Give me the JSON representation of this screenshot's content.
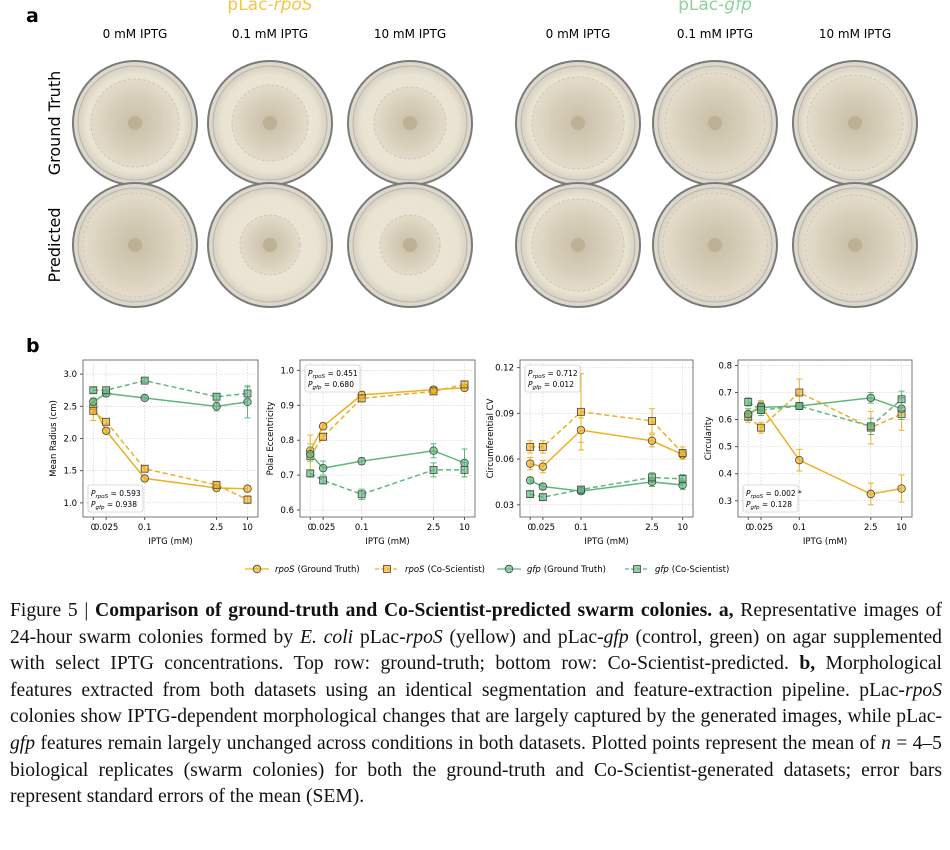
{
  "panel_a": {
    "letter": "a",
    "groups": [
      {
        "prefix": "pLac-",
        "gene": "rpoS",
        "color": "#f3c64a"
      },
      {
        "prefix": "pLac-",
        "gene": "gfp",
        "color": "#8fd0a0"
      }
    ],
    "conditions": [
      "0 mM IPTG",
      "0.1 mM IPTG",
      "10 mM IPTG",
      "0 mM IPTG",
      "0.1 mM IPTG",
      "10 mM IPTG"
    ],
    "rows": [
      "Ground Truth",
      "Predicted"
    ]
  },
  "panel_b": {
    "letter": "b"
  },
  "legend": [
    {
      "gene": "rpoS",
      "name": "(Ground Truth)",
      "color": "#eeb022",
      "dashed": false,
      "marker": "circle"
    },
    {
      "gene": "rpoS",
      "name": "(Co-Scientist)",
      "color": "#eeb022",
      "dashed": true,
      "marker": "square"
    },
    {
      "gene": "gfp",
      "name": "(Ground Truth)",
      "color": "#5fb77c",
      "dashed": false,
      "marker": "circle"
    },
    {
      "gene": "gfp",
      "name": "(Co-Scientist)",
      "color": "#5fb77c",
      "dashed": true,
      "marker": "square"
    }
  ],
  "chart_data": [
    {
      "type": "line",
      "ylabel": "Mean Radius (cm)",
      "xlabel": "IPTG (mM)",
      "xscale": "symlog",
      "grid": true,
      "x": [
        0,
        0.025,
        0.1,
        2.5,
        10
      ],
      "xlim": [
        -0.02,
        16
      ],
      "xticks": [
        0,
        0.025,
        0.1,
        2.5,
        10
      ],
      "ylim": [
        0.78,
        3.22
      ],
      "yticks": [
        {
          "value": 1,
          "label": "1.0"
        },
        1.5,
        {
          "value": 2,
          "label": "2.0"
        },
        2.5,
        {
          "value": 3,
          "label": "3.0"
        }
      ],
      "series": [
        {
          "values": [
            2.5,
            2.12,
            1.38,
            1.23,
            1.22
          ],
          "errors": [
            0.1,
            0.03,
            0.04,
            0.03,
            0.05
          ]
        },
        {
          "values": [
            2.43,
            2.26,
            1.53,
            1.28,
            1.05
          ],
          "errors": [
            0.15,
            0.05,
            0.05,
            0.04,
            0.06
          ]
        },
        {
          "values": [
            2.57,
            2.7,
            2.63,
            2.5,
            2.57
          ],
          "errors": [
            0.06,
            0.05,
            0.03,
            0.07,
            0.25
          ]
        },
        {
          "values": [
            2.75,
            2.75,
            2.9,
            2.65,
            2.7
          ],
          "errors": [
            0.04,
            0.05,
            0.03,
            0.05,
            0.1
          ]
        }
      ],
      "note_corner": "lower left",
      "annotations": [
        {
          "p": "P",
          "sub": "rpoS",
          "text": " = 0.593"
        },
        {
          "p": "P",
          "sub": "gfp",
          "text": " = 0.938"
        }
      ]
    },
    {
      "type": "line",
      "ylabel": "Polar Eccentricity",
      "xlabel": "IPTG (mM)",
      "xscale": "symlog",
      "grid": true,
      "x": [
        0,
        0.025,
        0.1,
        2.5,
        10
      ],
      "xlim": [
        -0.02,
        16
      ],
      "xticks": [
        0,
        0.025,
        0.1,
        2.5,
        10
      ],
      "ylim": [
        0.58,
        1.03
      ],
      "yticks": [
        0.6,
        0.7,
        0.8,
        0.9,
        {
          "value": 1,
          "label": "1.0"
        }
      ],
      "series": [
        {
          "values": [
            0.77,
            0.84,
            0.93,
            0.945,
            0.95
          ],
          "errors": [
            0.02,
            0.01,
            0.01,
            0.008,
            0.008
          ]
        },
        {
          "values": [
            0.755,
            0.81,
            0.92,
            0.94,
            0.96
          ],
          "errors": [
            0.06,
            0.01,
            0.01,
            0.008,
            0.01
          ]
        },
        {
          "values": [
            0.76,
            0.72,
            0.74,
            0.77,
            0.735
          ],
          "errors": [
            0.02,
            0.02,
            0.01,
            0.02,
            0.04
          ]
        },
        {
          "values": [
            0.705,
            0.685,
            0.645,
            0.715,
            0.715
          ],
          "errors": [
            0.01,
            0.01,
            0.015,
            0.02,
            0.02
          ]
        }
      ],
      "note_corner": "upper left",
      "annotations": [
        {
          "p": "P",
          "sub": "rpoS",
          "text": " = 0.451"
        },
        {
          "p": "P",
          "sub": "gfp",
          "text": " = 0.680"
        }
      ]
    },
    {
      "type": "line",
      "ylabel": "Circumferential CV",
      "xlabel": "IPTG (mM)",
      "xscale": "symlog",
      "grid": true,
      "x": [
        0,
        0.025,
        0.1,
        2.5,
        10
      ],
      "xlim": [
        -0.02,
        16
      ],
      "xticks": [
        0,
        0.025,
        0.1,
        2.5,
        10
      ],
      "ylim": [
        0.022,
        0.125
      ],
      "yticks": [
        0.03,
        0.06,
        0.09,
        0.12
      ],
      "series": [
        {
          "values": [
            0.057,
            0.055,
            0.079,
            0.072,
            0.063
          ],
          "errors": [
            0.004,
            0.004,
            0.008,
            0.004,
            0.003
          ]
        },
        {
          "values": [
            0.068,
            0.068,
            0.091,
            0.085,
            0.064
          ],
          "errors": [
            0.004,
            0.004,
            0.025,
            0.008,
            0.004
          ]
        },
        {
          "values": [
            0.046,
            0.042,
            0.039,
            0.045,
            0.043
          ],
          "errors": [
            0.002,
            0.002,
            0.002,
            0.003,
            0.003
          ]
        },
        {
          "values": [
            0.037,
            0.035,
            0.04,
            0.048,
            0.047
          ],
          "errors": [
            0.002,
            0.002,
            0.002,
            0.003,
            0.003
          ]
        }
      ],
      "note_corner": "upper left",
      "annotations": [
        {
          "p": "P",
          "sub": "rpoS",
          "text": " = 0.712"
        },
        {
          "p": "P",
          "sub": "gfp",
          "text": " = 0.012"
        }
      ]
    },
    {
      "type": "line",
      "ylabel": "Circularity",
      "xlabel": "IPTG (mM)",
      "xscale": "symlog",
      "grid": true,
      "x": [
        0,
        0.025,
        0.1,
        2.5,
        10
      ],
      "xlim": [
        -0.02,
        16
      ],
      "xticks": [
        0,
        0.025,
        0.1,
        2.5,
        10
      ],
      "ylim": [
        0.24,
        0.82
      ],
      "yticks": [
        0.3,
        0.4,
        0.5,
        0.6,
        0.7,
        0.8
      ],
      "series": [
        {
          "values": [
            0.62,
            0.65,
            0.45,
            0.325,
            0.345
          ],
          "errors": [
            0.02,
            0.02,
            0.04,
            0.04,
            0.05
          ]
        },
        {
          "values": [
            0.61,
            0.57,
            0.7,
            0.57,
            0.62
          ],
          "errors": [
            0.02,
            0.02,
            0.05,
            0.06,
            0.06
          ]
        },
        {
          "values": [
            0.62,
            0.645,
            0.65,
            0.68,
            0.64
          ],
          "errors": [
            0.02,
            0.02,
            0.01,
            0.02,
            0.04
          ]
        },
        {
          "values": [
            0.665,
            0.635,
            0.65,
            0.575,
            0.675
          ],
          "errors": [
            0.015,
            0.02,
            0.01,
            0.03,
            0.03
          ]
        }
      ],
      "note_corner": "lower left",
      "annotations": [
        {
          "p": "P",
          "sub": "rpoS",
          "text": " = 0.002 *"
        },
        {
          "p": "P",
          "sub": "gfp",
          "text": " = 0.128"
        }
      ]
    }
  ],
  "caption": [
    {
      "text": "Figure 5 | ",
      "style": "normal"
    },
    {
      "text": "Comparison of ground-truth and Co-Scientist-predicted swarm colonies. a,",
      "style": "bold"
    },
    {
      "text": " Representative images of 24-hour swarm colonies formed by ",
      "style": "normal"
    },
    {
      "text": "E. coli",
      "style": "italic"
    },
    {
      "text": " pLac-",
      "style": "normal"
    },
    {
      "text": "rpoS",
      "style": "italic"
    },
    {
      "text": " (yellow) and pLac-",
      "style": "normal"
    },
    {
      "text": "gfp",
      "style": "italic"
    },
    {
      "text": " (control, green) on agar supplemented with select IPTG concentrations. Top row: ground-truth; bottom row: Co-Scientist-predicted. ",
      "style": "normal"
    },
    {
      "text": "b,",
      "style": "bold"
    },
    {
      "text": " Morphological features extracted from both datasets using an identical segmentation and feature-extraction pipeline. pLac-",
      "style": "normal"
    },
    {
      "text": "rpoS",
      "style": "italic"
    },
    {
      "text": " colonies show IPTG-dependent morphological changes that are largely captured by the generated images, while pLac-",
      "style": "normal"
    },
    {
      "text": "gfp",
      "style": "italic"
    },
    {
      "text": " features remain largely unchanged across conditions in both datasets. Plotted points represent the mean of ",
      "style": "normal"
    },
    {
      "text": "n",
      "style": "italic"
    },
    {
      "text": " = 4–5 biological replicates (swarm colonies) for both the ground-truth and Co-Scientist-generated datasets; error bars represent standard errors of the mean (SEM).",
      "style": "normal"
    }
  ]
}
